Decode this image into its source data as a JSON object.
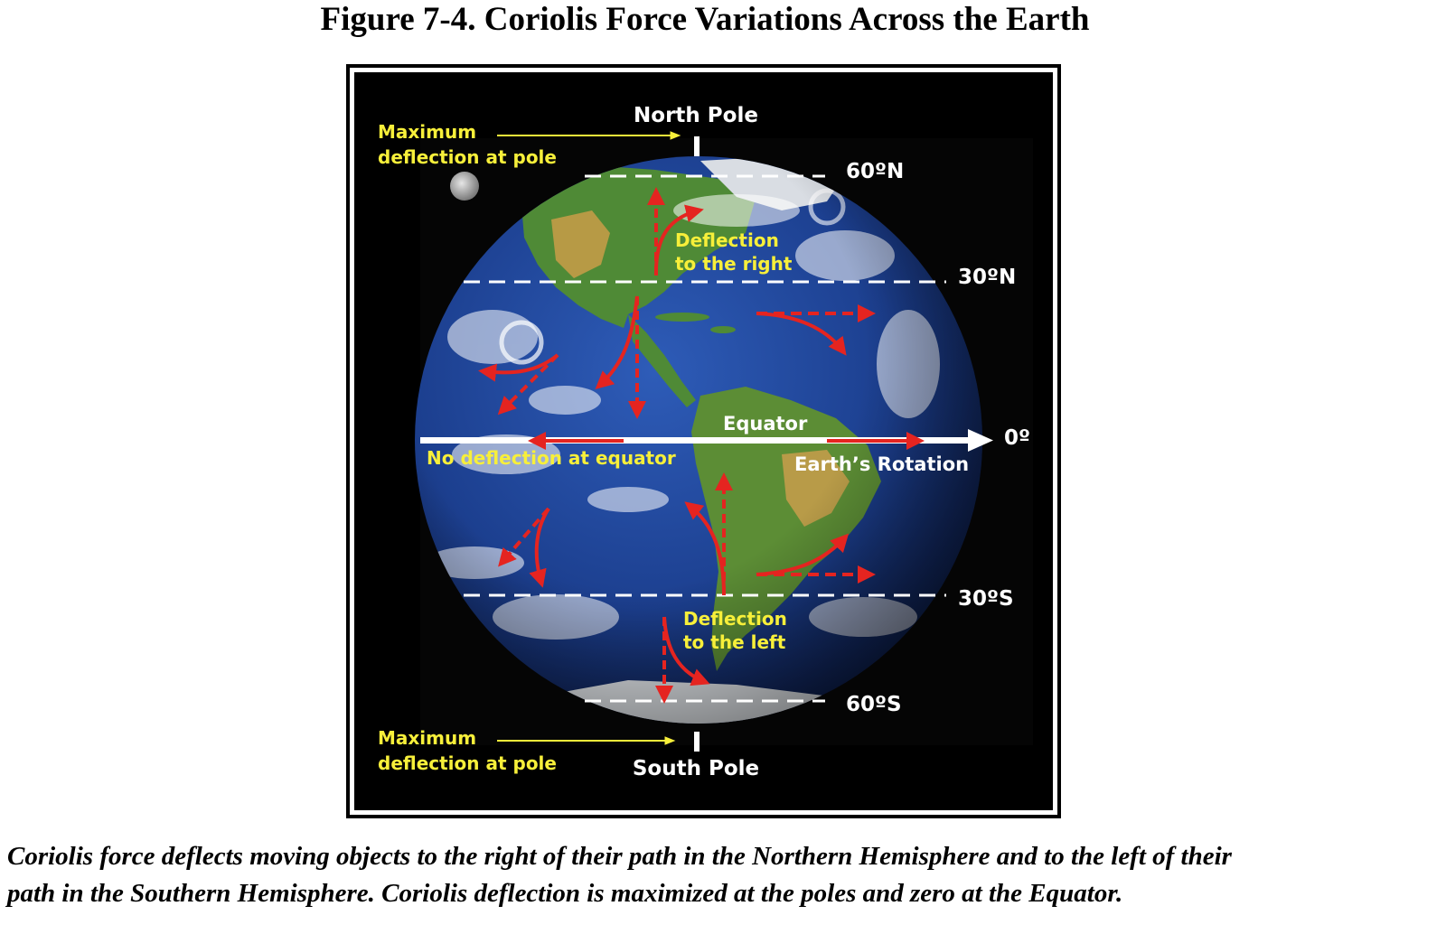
{
  "figure": {
    "title": "Figure 7-4. Coriolis Force Variations Across the Earth"
  },
  "labels": {
    "north_pole": "North Pole",
    "south_pole": "South Pole",
    "lat_60n": "60ºN",
    "lat_30n": "30ºN",
    "lat_30s": "30ºS",
    "lat_60s": "60ºS",
    "equator": "Equator",
    "zero_deg": "0º",
    "earth_rotation": "Earth’s Rotation",
    "max_deflection_top_line1": "Maximum",
    "max_deflection_top_line2": "deflection at pole",
    "max_deflection_bottom_line1": "Maximum",
    "max_deflection_bottom_line2": "deflection at pole",
    "deflection_right_line1": "Deflection",
    "deflection_right_line2": "to the right",
    "deflection_left_line1": "Deflection",
    "deflection_left_line2": "to the left",
    "no_deflection": "No deflection at equator"
  },
  "caption": {
    "line1": "Coriolis force deflects moving objects to the right of their path in the Northern Hemisphere and to the left of their",
    "line2": "path in the Southern Hemisphere. Coriolis deflection is maximized at the poles and zero at the Equator."
  },
  "colors": {
    "arrow_red": "#e52420",
    "label_yellow": "#f7ef3a",
    "ocean_blue": "#1c3f8f",
    "background": "#000000"
  }
}
